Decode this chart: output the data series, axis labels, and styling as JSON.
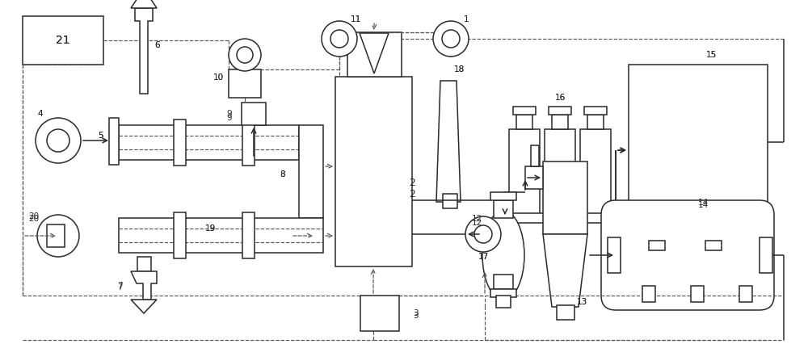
{
  "bg": "#ffffff",
  "lc": "#2a2a2a",
  "dc": "#555555",
  "lw": 1.1,
  "dlw": 0.85,
  "fw": 10.0,
  "fh": 4.26,
  "dpi": 100
}
